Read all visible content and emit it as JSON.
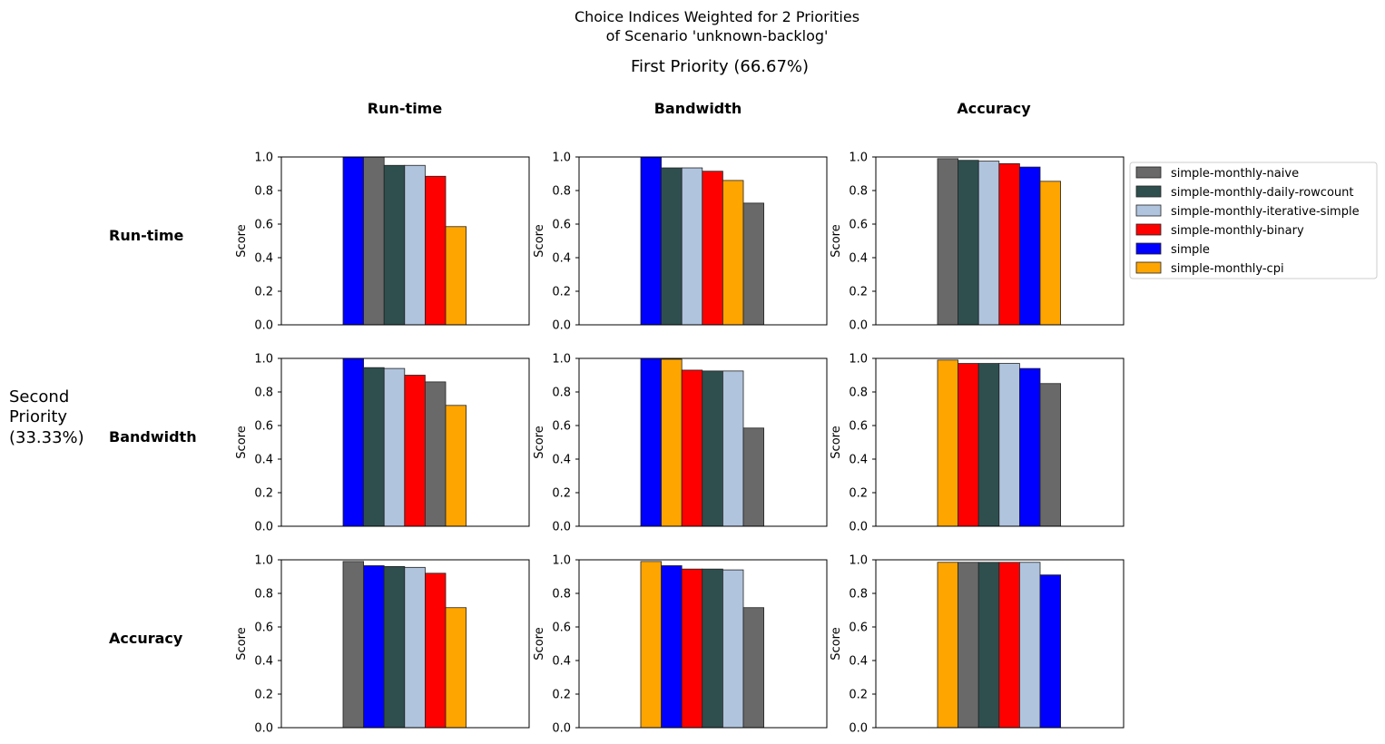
{
  "figure": {
    "title_lines": [
      "Choice Indices Weighted for 2 Priorities",
      "of Scenario 'unknown-backlog'"
    ],
    "first_priority_label": "First Priority (66.67%)",
    "second_priority_lines": [
      "Second",
      "Priority",
      "(33.33%)"
    ],
    "column_headers": [
      "Run-time",
      "Bandwidth",
      "Accuracy"
    ],
    "row_headers": [
      "Run-time",
      "Bandwidth",
      "Accuracy"
    ]
  },
  "colors": {
    "simple-monthly-naive": "#696969",
    "simple-monthly-daily-rowcount": "#2f4f4f",
    "simple-monthly-iterative-simple": "#b0c4de",
    "simple-monthly-binary": "#ff0000",
    "simple": "#0000ff",
    "simple-monthly-cpi": "#ffa500"
  },
  "legend": {
    "entries": [
      "simple-monthly-naive",
      "simple-monthly-daily-rowcount",
      "simple-monthly-iterative-simple",
      "simple-monthly-binary",
      "simple",
      "simple-monthly-cpi"
    ],
    "placement": "right of top-right subplot"
  },
  "chart_data": [
    {
      "type": "bar",
      "row": "Run-time",
      "col": "Run-time",
      "ylabel": "Score",
      "ylim": [
        0,
        1
      ],
      "yticks": [
        "0.0",
        "0.2",
        "0.4",
        "0.6",
        "0.8",
        "1.0"
      ],
      "bars": [
        {
          "name": "simple",
          "value": 1.0
        },
        {
          "name": "simple-monthly-naive",
          "value": 1.0
        },
        {
          "name": "simple-monthly-daily-rowcount",
          "value": 0.95
        },
        {
          "name": "simple-monthly-iterative-simple",
          "value": 0.95
        },
        {
          "name": "simple-monthly-binary",
          "value": 0.885
        },
        {
          "name": "simple-monthly-cpi",
          "value": 0.585
        }
      ]
    },
    {
      "type": "bar",
      "row": "Run-time",
      "col": "Bandwidth",
      "ylabel": "Score",
      "ylim": [
        0,
        1
      ],
      "yticks": [
        "0.0",
        "0.2",
        "0.4",
        "0.6",
        "0.8",
        "1.0"
      ],
      "bars": [
        {
          "name": "simple",
          "value": 1.0
        },
        {
          "name": "simple-monthly-daily-rowcount",
          "value": 0.935
        },
        {
          "name": "simple-monthly-iterative-simple",
          "value": 0.935
        },
        {
          "name": "simple-monthly-binary",
          "value": 0.915
        },
        {
          "name": "simple-monthly-cpi",
          "value": 0.86
        },
        {
          "name": "simple-monthly-naive",
          "value": 0.725
        }
      ]
    },
    {
      "type": "bar",
      "row": "Run-time",
      "col": "Accuracy",
      "ylabel": "Score",
      "ylim": [
        0,
        1
      ],
      "yticks": [
        "0.0",
        "0.2",
        "0.4",
        "0.6",
        "0.8",
        "1.0"
      ],
      "bars": [
        {
          "name": "simple-monthly-naive",
          "value": 0.99
        },
        {
          "name": "simple-monthly-daily-rowcount",
          "value": 0.98
        },
        {
          "name": "simple-monthly-iterative-simple",
          "value": 0.975
        },
        {
          "name": "simple-monthly-binary",
          "value": 0.96
        },
        {
          "name": "simple",
          "value": 0.94
        },
        {
          "name": "simple-monthly-cpi",
          "value": 0.855
        }
      ]
    },
    {
      "type": "bar",
      "row": "Bandwidth",
      "col": "Run-time",
      "ylabel": "Score",
      "ylim": [
        0,
        1
      ],
      "yticks": [
        "0.0",
        "0.2",
        "0.4",
        "0.6",
        "0.8",
        "1.0"
      ],
      "bars": [
        {
          "name": "simple",
          "value": 1.0
        },
        {
          "name": "simple-monthly-daily-rowcount",
          "value": 0.945
        },
        {
          "name": "simple-monthly-iterative-simple",
          "value": 0.94
        },
        {
          "name": "simple-monthly-binary",
          "value": 0.9
        },
        {
          "name": "simple-monthly-naive",
          "value": 0.86
        },
        {
          "name": "simple-monthly-cpi",
          "value": 0.72
        }
      ]
    },
    {
      "type": "bar",
      "row": "Bandwidth",
      "col": "Bandwidth",
      "ylabel": "Score",
      "ylim": [
        0,
        1
      ],
      "yticks": [
        "0.0",
        "0.2",
        "0.4",
        "0.6",
        "0.8",
        "1.0"
      ],
      "bars": [
        {
          "name": "simple",
          "value": 1.0
        },
        {
          "name": "simple-monthly-cpi",
          "value": 0.995
        },
        {
          "name": "simple-monthly-binary",
          "value": 0.93
        },
        {
          "name": "simple-monthly-daily-rowcount",
          "value": 0.925
        },
        {
          "name": "simple-monthly-iterative-simple",
          "value": 0.925
        },
        {
          "name": "simple-monthly-naive",
          "value": 0.585
        }
      ]
    },
    {
      "type": "bar",
      "row": "Bandwidth",
      "col": "Accuracy",
      "ylabel": "Score",
      "ylim": [
        0,
        1
      ],
      "yticks": [
        "0.0",
        "0.2",
        "0.4",
        "0.6",
        "0.8",
        "1.0"
      ],
      "bars": [
        {
          "name": "simple-monthly-cpi",
          "value": 0.99
        },
        {
          "name": "simple-monthly-binary",
          "value": 0.97
        },
        {
          "name": "simple-monthly-daily-rowcount",
          "value": 0.97
        },
        {
          "name": "simple-monthly-iterative-simple",
          "value": 0.97
        },
        {
          "name": "simple",
          "value": 0.94
        },
        {
          "name": "simple-monthly-naive",
          "value": 0.85
        }
      ]
    },
    {
      "type": "bar",
      "row": "Accuracy",
      "col": "Run-time",
      "ylabel": "Score",
      "ylim": [
        0,
        1
      ],
      "yticks": [
        "0.0",
        "0.2",
        "0.4",
        "0.6",
        "0.8",
        "1.0"
      ],
      "bars": [
        {
          "name": "simple-monthly-naive",
          "value": 0.99
        },
        {
          "name": "simple",
          "value": 0.965
        },
        {
          "name": "simple-monthly-daily-rowcount",
          "value": 0.96
        },
        {
          "name": "simple-monthly-iterative-simple",
          "value": 0.955
        },
        {
          "name": "simple-monthly-binary",
          "value": 0.92
        },
        {
          "name": "simple-monthly-cpi",
          "value": 0.715
        }
      ]
    },
    {
      "type": "bar",
      "row": "Accuracy",
      "col": "Bandwidth",
      "ylabel": "Score",
      "ylim": [
        0,
        1
      ],
      "yticks": [
        "0.0",
        "0.2",
        "0.4",
        "0.6",
        "0.8",
        "1.0"
      ],
      "bars": [
        {
          "name": "simple-monthly-cpi",
          "value": 0.99
        },
        {
          "name": "simple",
          "value": 0.965
        },
        {
          "name": "simple-monthly-binary",
          "value": 0.945
        },
        {
          "name": "simple-monthly-daily-rowcount",
          "value": 0.945
        },
        {
          "name": "simple-monthly-iterative-simple",
          "value": 0.94
        },
        {
          "name": "simple-monthly-naive",
          "value": 0.715
        }
      ]
    },
    {
      "type": "bar",
      "row": "Accuracy",
      "col": "Accuracy",
      "ylabel": "Score",
      "ylim": [
        0,
        1
      ],
      "yticks": [
        "0.0",
        "0.2",
        "0.4",
        "0.6",
        "0.8",
        "1.0"
      ],
      "bars": [
        {
          "name": "simple-monthly-cpi",
          "value": 0.985
        },
        {
          "name": "simple-monthly-naive",
          "value": 0.985
        },
        {
          "name": "simple-monthly-daily-rowcount",
          "value": 0.985
        },
        {
          "name": "simple-monthly-binary",
          "value": 0.985
        },
        {
          "name": "simple-monthly-iterative-simple",
          "value": 0.985
        },
        {
          "name": "simple",
          "value": 0.91
        }
      ]
    }
  ]
}
